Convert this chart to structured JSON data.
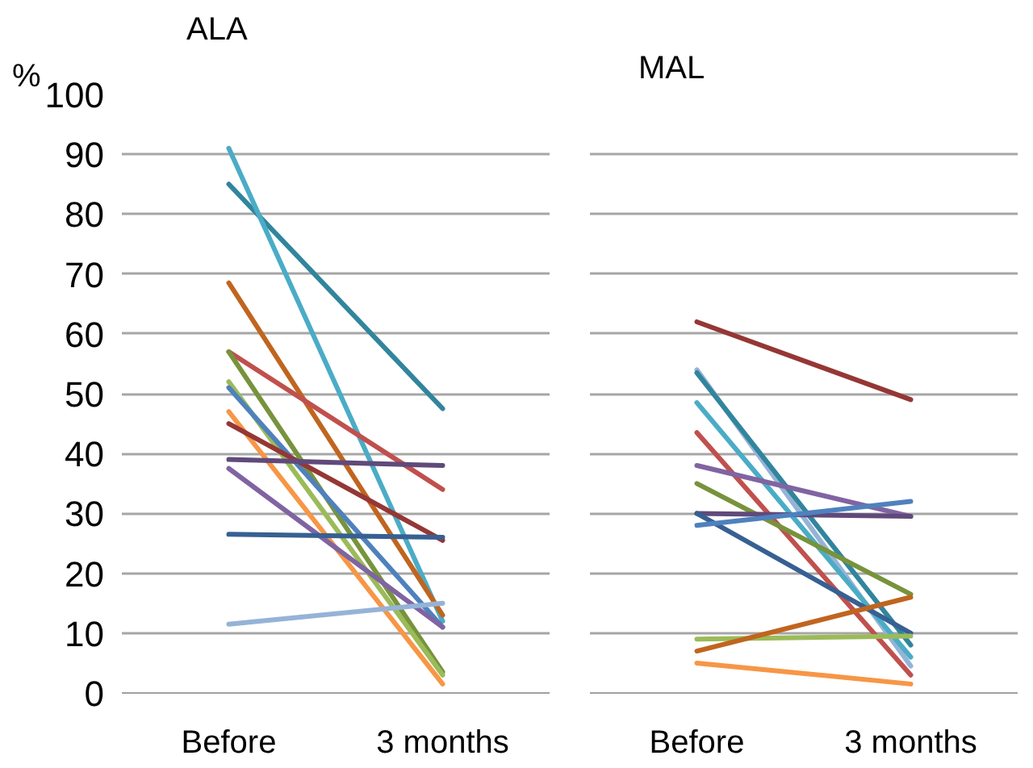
{
  "chart_data": [
    {
      "type": "line",
      "title": "ALA",
      "ylabel": "%",
      "categories": [
        "Before",
        "3 months"
      ],
      "ylim": [
        0,
        100
      ],
      "yticks": [
        0,
        10,
        20,
        30,
        40,
        50,
        60,
        70,
        80,
        90,
        100
      ],
      "grid": "y",
      "marker": "none",
      "line_style": "solid",
      "series": [
        {
          "color": "#31859c",
          "values": [
            85,
            47.5
          ]
        },
        {
          "color": "#4bacc6",
          "values": [
            91,
            12
          ]
        },
        {
          "color": "#c0651f",
          "values": [
            68.5,
            13
          ]
        },
        {
          "color": "#c0504d",
          "values": [
            57,
            34
          ]
        },
        {
          "color": "#77933c",
          "values": [
            57,
            3.5
          ]
        },
        {
          "color": "#9bbb59",
          "values": [
            52,
            3
          ]
        },
        {
          "color": "#4f81bd",
          "values": [
            51,
            11
          ]
        },
        {
          "color": "#f79646",
          "values": [
            47,
            1.5
          ]
        },
        {
          "color": "#953735",
          "values": [
            45,
            25.5
          ]
        },
        {
          "color": "#604a7b",
          "values": [
            39,
            38
          ]
        },
        {
          "color": "#8064a2",
          "values": [
            37.5,
            11
          ]
        },
        {
          "color": "#376092",
          "values": [
            26.5,
            26
          ]
        },
        {
          "color": "#95b3d7",
          "values": [
            11.5,
            15
          ]
        }
      ]
    },
    {
      "type": "line",
      "title": "MAL",
      "categories": [
        "Before",
        "3 months"
      ],
      "ylim": [
        0,
        100
      ],
      "yticks": [
        0,
        10,
        20,
        30,
        40,
        50,
        60,
        70,
        80,
        90,
        100
      ],
      "tick_labels": "x",
      "grid": "y",
      "marker": "none",
      "line_style": "solid",
      "series": [
        {
          "color": "#953735",
          "values": [
            62,
            49
          ]
        },
        {
          "color": "#95b3d7",
          "values": [
            54,
            4.5
          ]
        },
        {
          "color": "#31859c",
          "values": [
            53.5,
            8
          ]
        },
        {
          "color": "#4bacc6",
          "values": [
            48.5,
            6
          ]
        },
        {
          "color": "#c0504d",
          "values": [
            43.5,
            3
          ]
        },
        {
          "color": "#8064a2",
          "values": [
            38,
            29.5
          ]
        },
        {
          "color": "#77933c",
          "values": [
            35,
            16.5
          ]
        },
        {
          "color": "#604a7b",
          "values": [
            30,
            29.5
          ]
        },
        {
          "color": "#376092",
          "values": [
            30,
            10
          ]
        },
        {
          "color": "#4f81bd",
          "values": [
            28,
            32
          ]
        },
        {
          "color": "#9bbb59",
          "values": [
            9,
            9.5
          ]
        },
        {
          "color": "#c0651f",
          "values": [
            7,
            16
          ]
        },
        {
          "color": "#f79646",
          "values": [
            5,
            1.5
          ]
        }
      ]
    }
  ]
}
